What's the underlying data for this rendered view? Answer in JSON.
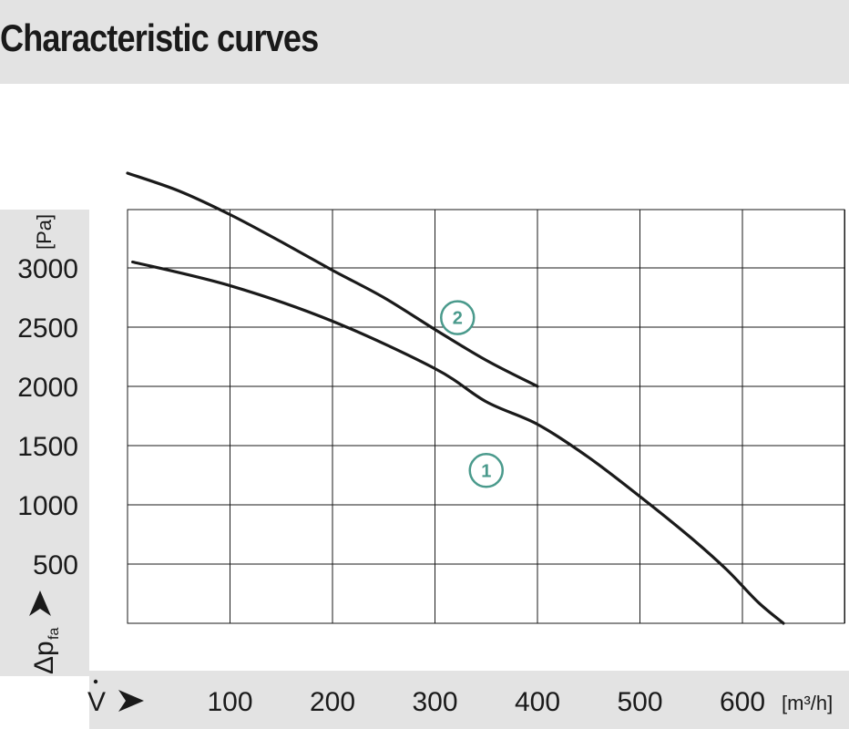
{
  "header": {
    "title": "Characteristic curves"
  },
  "chart_data": {
    "type": "line",
    "title": "Characteristic curves",
    "xlabel": "V",
    "xunit": "[m³/h]",
    "ylabel": "Δp",
    "ylabel_sub": "fa",
    "yunit": "[Pa]",
    "xlim": [
      0,
      600
    ],
    "ylim": [
      0,
      3500
    ],
    "x_ticks": [
      100,
      200,
      300,
      400,
      500,
      600
    ],
    "x_tick_labels": [
      "100",
      "200",
      "300",
      "400",
      "500",
      "600"
    ],
    "y_ticks": [
      500,
      1000,
      1500,
      2000,
      2500,
      3000
    ],
    "y_tick_labels": [
      "500",
      "1000",
      "1500",
      "2000",
      "2500",
      "3000"
    ],
    "grid": true,
    "marker_color": "#4a9a8c",
    "line_color": "#1a1a1a",
    "series": [
      {
        "name": "1",
        "x": [
          5,
          100,
          200,
          300,
          350,
          400,
          450,
          500,
          550,
          585,
          615,
          640
        ],
        "y": [
          3050,
          2850,
          2550,
          2150,
          1870,
          1680,
          1400,
          1070,
          720,
          450,
          180,
          0
        ],
        "marker_at": [
          350,
          1290
        ]
      },
      {
        "name": "2",
        "x": [
          0,
          50,
          100,
          150,
          200,
          250,
          300,
          350,
          400
        ],
        "y": [
          3800,
          3650,
          3450,
          3220,
          2980,
          2750,
          2480,
          2220,
          2000
        ],
        "marker_at": [
          322,
          2580
        ]
      }
    ]
  }
}
